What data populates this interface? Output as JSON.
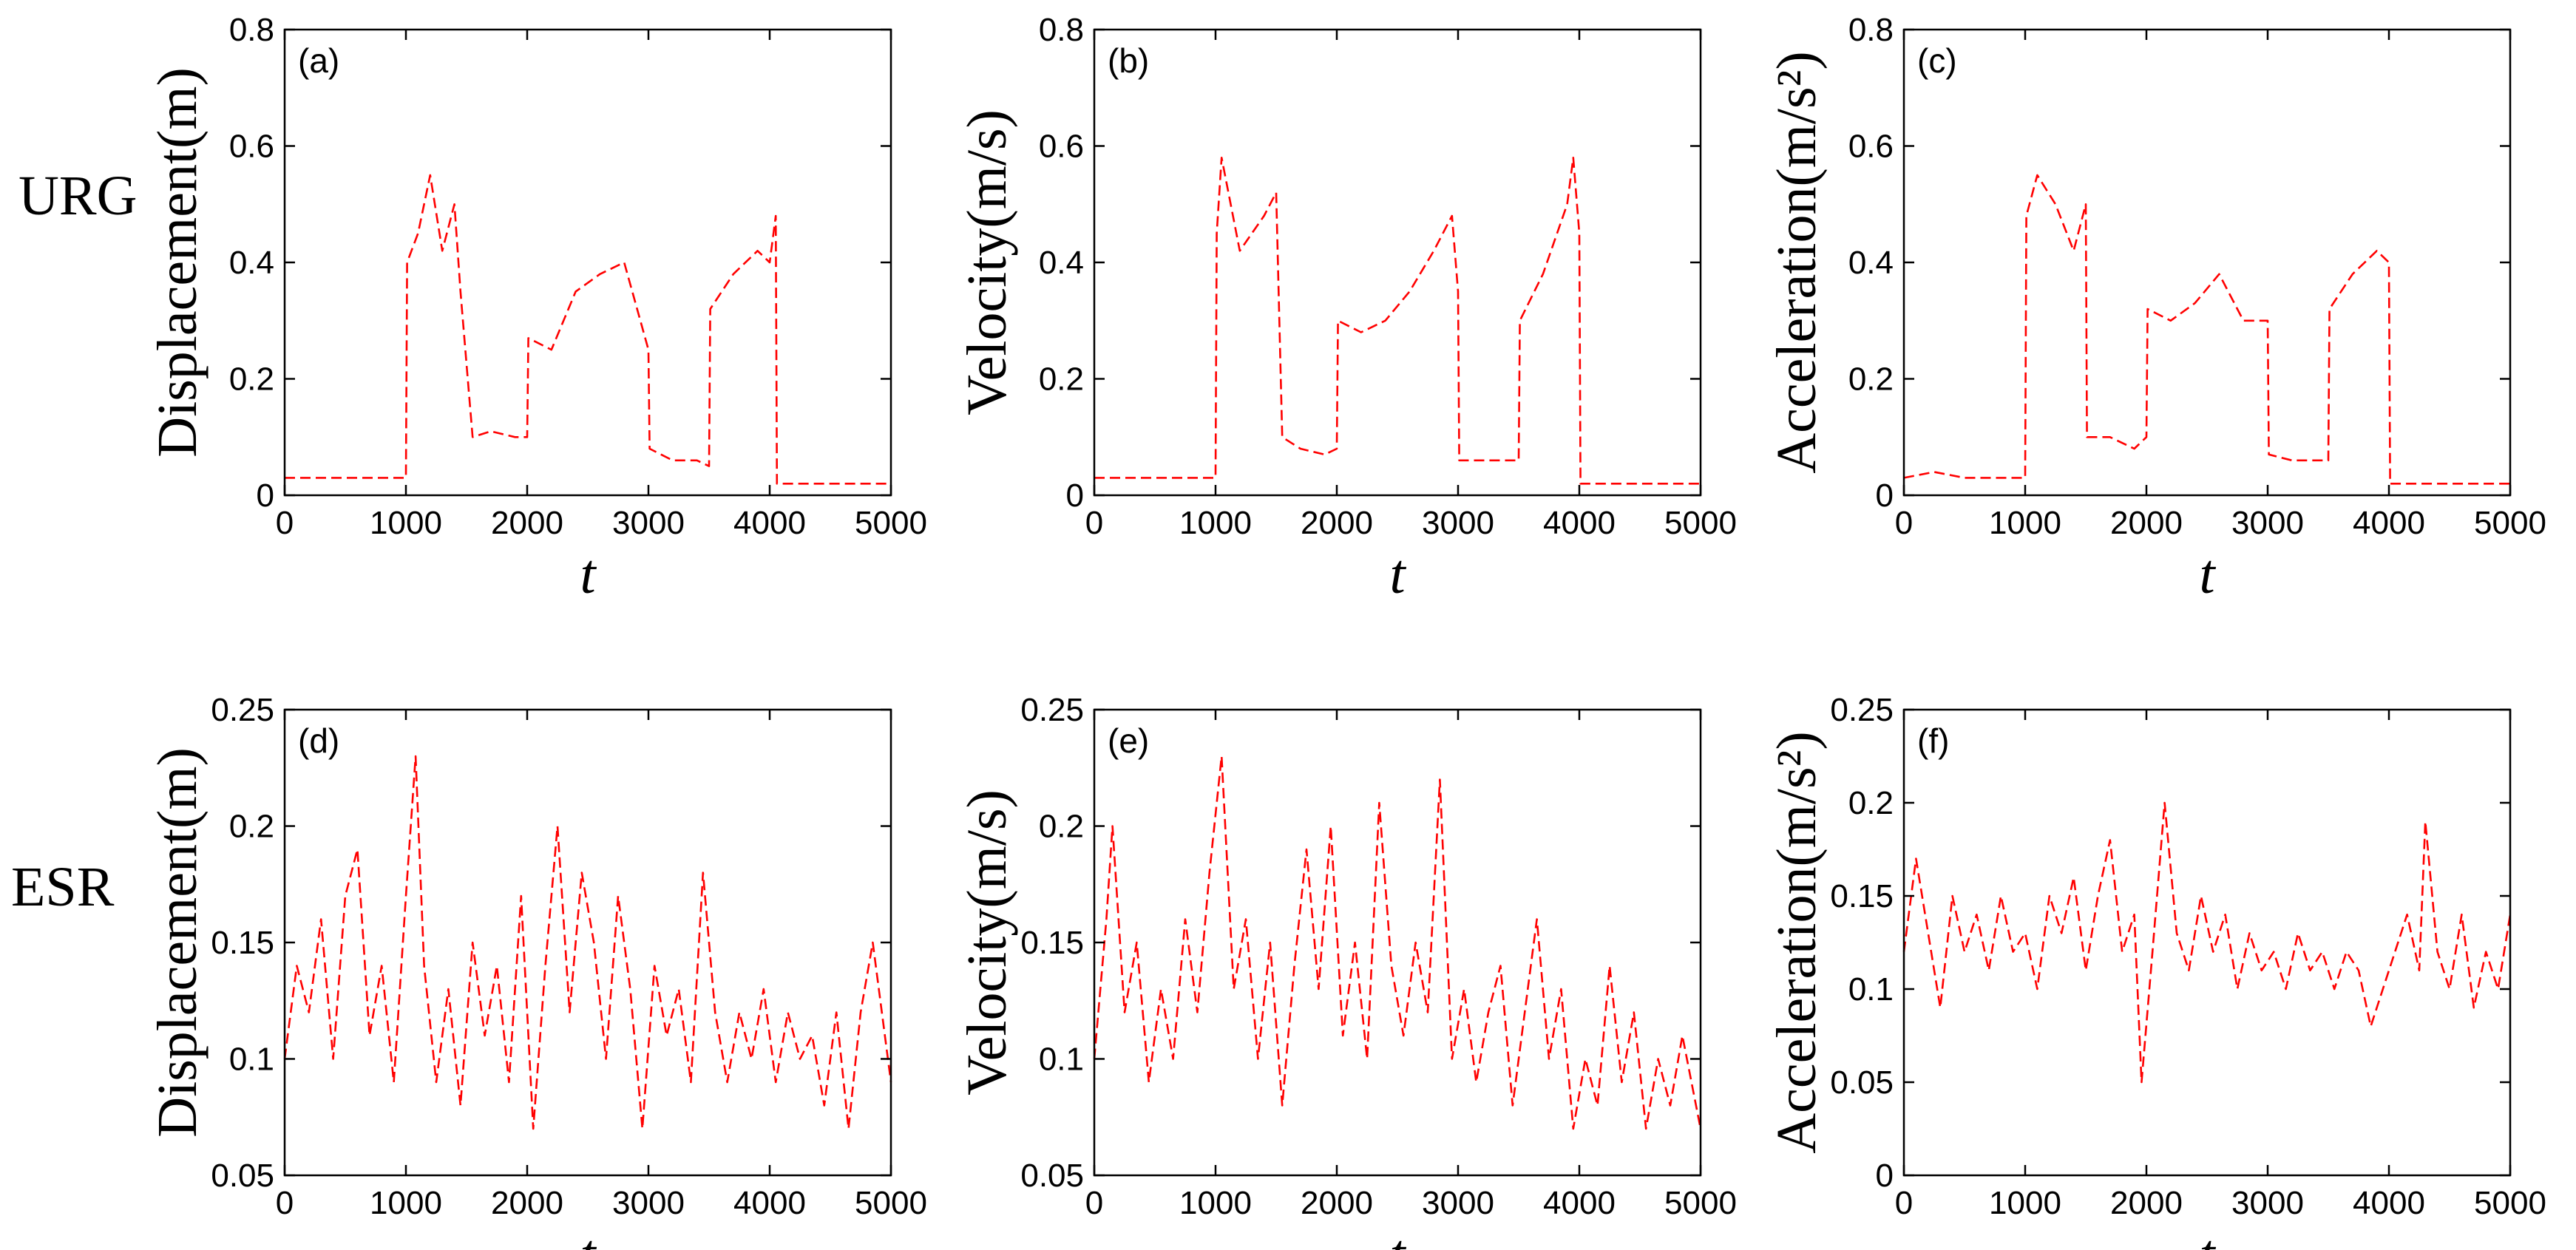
{
  "row_labels": [
    "URG",
    "ESR"
  ],
  "chart_data": [
    {
      "type": "line",
      "panel_label": "(a)",
      "ylabel": "Displacement(m)",
      "xlabel": "t",
      "xlim": [
        0,
        5000
      ],
      "ylim": [
        0,
        0.8
      ],
      "xticks": [
        0,
        1000,
        2000,
        3000,
        4000,
        5000
      ],
      "xtick_labels": [
        "0",
        "1000",
        "2000",
        "3000",
        "4000",
        "5000"
      ],
      "yticks": [
        0,
        0.2,
        0.4,
        0.6,
        0.8
      ],
      "ytick_labels": [
        "0",
        "0.2",
        "0.4",
        "0.6",
        "0.8"
      ],
      "grid": false,
      "line_style": "dashed",
      "color": "#ff0000",
      "series": [
        {
          "name": "",
          "x": [
            0,
            250,
            500,
            750,
            1000,
            1010,
            1100,
            1200,
            1300,
            1400,
            1450,
            1550,
            1700,
            1900,
            2000,
            2010,
            2200,
            2400,
            2600,
            2800,
            3000,
            3010,
            3200,
            3400,
            3500,
            3510,
            3700,
            3900,
            4000,
            4050,
            4060,
            4300,
            4600,
            5000
          ],
          "y": [
            0.03,
            0.03,
            0.03,
            0.03,
            0.03,
            0.4,
            0.45,
            0.55,
            0.42,
            0.5,
            0.35,
            0.1,
            0.11,
            0.1,
            0.1,
            0.27,
            0.25,
            0.35,
            0.38,
            0.4,
            0.25,
            0.08,
            0.06,
            0.06,
            0.05,
            0.32,
            0.38,
            0.42,
            0.4,
            0.48,
            0.02,
            0.02,
            0.02,
            0.02
          ]
        }
      ]
    },
    {
      "type": "line",
      "panel_label": "(b)",
      "ylabel": "Velocity(m/s)",
      "xlabel": "t",
      "xlim": [
        0,
        5000
      ],
      "ylim": [
        0,
        0.8
      ],
      "xticks": [
        0,
        1000,
        2000,
        3000,
        4000,
        5000
      ],
      "xtick_labels": [
        "0",
        "1000",
        "2000",
        "3000",
        "4000",
        "5000"
      ],
      "yticks": [
        0,
        0.2,
        0.4,
        0.6,
        0.8
      ],
      "ytick_labels": [
        "0",
        "0.2",
        "0.4",
        "0.6",
        "0.8"
      ],
      "grid": false,
      "line_style": "dashed",
      "color": "#ff0000",
      "series": [
        {
          "name": "",
          "x": [
            0,
            250,
            500,
            750,
            1000,
            1010,
            1050,
            1200,
            1400,
            1500,
            1550,
            1700,
            1900,
            2000,
            2010,
            2200,
            2400,
            2600,
            2800,
            2950,
            3000,
            3010,
            3200,
            3450,
            3500,
            3510,
            3700,
            3900,
            3950,
            4000,
            4010,
            4300,
            4600,
            5000
          ],
          "y": [
            0.03,
            0.03,
            0.03,
            0.03,
            0.03,
            0.45,
            0.58,
            0.42,
            0.48,
            0.52,
            0.1,
            0.08,
            0.07,
            0.08,
            0.3,
            0.28,
            0.3,
            0.35,
            0.42,
            0.48,
            0.35,
            0.06,
            0.06,
            0.06,
            0.06,
            0.3,
            0.38,
            0.5,
            0.58,
            0.45,
            0.02,
            0.02,
            0.02,
            0.02
          ]
        }
      ]
    },
    {
      "type": "line",
      "panel_label": "(c)",
      "ylabel": "Acceleration(m/s²)",
      "xlabel": "t",
      "xlim": [
        0,
        5000
      ],
      "ylim": [
        0,
        0.8
      ],
      "xticks": [
        0,
        1000,
        2000,
        3000,
        4000,
        5000
      ],
      "xtick_labels": [
        "0",
        "1000",
        "2000",
        "3000",
        "4000",
        "5000"
      ],
      "yticks": [
        0,
        0.2,
        0.4,
        0.6,
        0.8
      ],
      "ytick_labels": [
        "0",
        "0.2",
        "0.4",
        "0.6",
        "0.8"
      ],
      "grid": false,
      "line_style": "dashed",
      "color": "#ff0000",
      "series": [
        {
          "name": "",
          "x": [
            0,
            250,
            500,
            750,
            1000,
            1010,
            1100,
            1250,
            1400,
            1500,
            1510,
            1700,
            1900,
            2000,
            2010,
            2200,
            2400,
            2600,
            2800,
            3000,
            3010,
            3200,
            3450,
            3500,
            3510,
            3700,
            3900,
            4000,
            4010,
            4300,
            4600,
            5000
          ],
          "y": [
            0.03,
            0.04,
            0.03,
            0.03,
            0.03,
            0.48,
            0.55,
            0.5,
            0.42,
            0.5,
            0.1,
            0.1,
            0.08,
            0.1,
            0.32,
            0.3,
            0.33,
            0.38,
            0.3,
            0.3,
            0.07,
            0.06,
            0.06,
            0.06,
            0.32,
            0.38,
            0.42,
            0.4,
            0.02,
            0.02,
            0.02,
            0.02
          ]
        }
      ]
    },
    {
      "type": "line",
      "panel_label": "(d)",
      "ylabel": "Displacement(m)",
      "xlabel": "t",
      "xlim": [
        0,
        5000
      ],
      "ylim": [
        0.05,
        0.25
      ],
      "xticks": [
        0,
        1000,
        2000,
        3000,
        4000,
        5000
      ],
      "xtick_labels": [
        "0",
        "1000",
        "2000",
        "3000",
        "4000",
        "5000"
      ],
      "yticks": [
        0.05,
        0.1,
        0.15,
        0.2,
        0.25
      ],
      "ytick_labels": [
        "0.05",
        "0.1",
        "0.15",
        "0.2",
        "0.25"
      ],
      "grid": false,
      "line_style": "dashed",
      "color": "#ff0000",
      "series": [
        {
          "name": "",
          "x": [
            0,
            100,
            200,
            300,
            400,
            500,
            600,
            700,
            800,
            900,
            1000,
            1080,
            1150,
            1250,
            1350,
            1450,
            1550,
            1650,
            1750,
            1850,
            1950,
            2050,
            2150,
            2250,
            2350,
            2450,
            2550,
            2650,
            2750,
            2850,
            2950,
            3050,
            3150,
            3250,
            3350,
            3450,
            3550,
            3650,
            3750,
            3850,
            3950,
            4050,
            4150,
            4250,
            4350,
            4450,
            4550,
            4650,
            4750,
            4850,
            5000
          ],
          "y": [
            0.1,
            0.14,
            0.12,
            0.16,
            0.1,
            0.17,
            0.19,
            0.11,
            0.14,
            0.09,
            0.17,
            0.23,
            0.14,
            0.09,
            0.13,
            0.08,
            0.15,
            0.11,
            0.14,
            0.09,
            0.17,
            0.07,
            0.14,
            0.2,
            0.12,
            0.18,
            0.15,
            0.1,
            0.17,
            0.13,
            0.07,
            0.14,
            0.11,
            0.13,
            0.09,
            0.18,
            0.12,
            0.09,
            0.12,
            0.1,
            0.13,
            0.09,
            0.12,
            0.1,
            0.11,
            0.08,
            0.12,
            0.07,
            0.12,
            0.15,
            0.09
          ]
        }
      ]
    },
    {
      "type": "line",
      "panel_label": "(e)",
      "ylabel": "Velocity(m/s)",
      "xlabel": "t",
      "xlim": [
        0,
        5000
      ],
      "ylim": [
        0.05,
        0.25
      ],
      "xticks": [
        0,
        1000,
        2000,
        3000,
        4000,
        5000
      ],
      "xtick_labels": [
        "0",
        "1000",
        "2000",
        "3000",
        "4000",
        "5000"
      ],
      "yticks": [
        0.05,
        0.1,
        0.15,
        0.2,
        0.25
      ],
      "ytick_labels": [
        "0.05",
        "0.1",
        "0.15",
        "0.2",
        "0.25"
      ],
      "grid": false,
      "line_style": "dashed",
      "color": "#ff0000",
      "series": [
        {
          "name": "",
          "x": [
            0,
            100,
            150,
            250,
            350,
            450,
            550,
            650,
            750,
            850,
            950,
            1050,
            1150,
            1250,
            1350,
            1450,
            1550,
            1650,
            1750,
            1850,
            1950,
            2050,
            2150,
            2250,
            2350,
            2450,
            2550,
            2650,
            2750,
            2850,
            2950,
            3050,
            3150,
            3250,
            3350,
            3450,
            3550,
            3650,
            3750,
            3850,
            3950,
            4050,
            4150,
            4250,
            4350,
            4450,
            4550,
            4650,
            4750,
            4850,
            5000
          ],
          "y": [
            0.1,
            0.16,
            0.2,
            0.12,
            0.15,
            0.09,
            0.13,
            0.1,
            0.16,
            0.12,
            0.18,
            0.23,
            0.13,
            0.16,
            0.1,
            0.15,
            0.08,
            0.14,
            0.19,
            0.13,
            0.2,
            0.11,
            0.15,
            0.1,
            0.21,
            0.14,
            0.11,
            0.15,
            0.12,
            0.22,
            0.1,
            0.13,
            0.09,
            0.12,
            0.14,
            0.08,
            0.12,
            0.16,
            0.1,
            0.13,
            0.07,
            0.1,
            0.08,
            0.14,
            0.09,
            0.12,
            0.07,
            0.1,
            0.08,
            0.11,
            0.07
          ]
        }
      ]
    },
    {
      "type": "line",
      "panel_label": "(f)",
      "ylabel": "Acceleration(m/s²)",
      "xlabel": "t",
      "xlim": [
        0,
        5000
      ],
      "ylim": [
        0,
        0.25
      ],
      "xticks": [
        0,
        1000,
        2000,
        3000,
        4000,
        5000
      ],
      "xtick_labels": [
        "0",
        "1000",
        "2000",
        "3000",
        "4000",
        "5000"
      ],
      "yticks": [
        0,
        0.05,
        0.1,
        0.15,
        0.2,
        0.25
      ],
      "ytick_labels": [
        "0",
        "0.05",
        "0.1",
        "0.15",
        "0.2",
        "0.25"
      ],
      "grid": false,
      "line_style": "dashed",
      "color": "#ff0000",
      "series": [
        {
          "name": "",
          "x": [
            0,
            100,
            200,
            300,
            400,
            500,
            600,
            700,
            800,
            900,
            1000,
            1100,
            1200,
            1300,
            1400,
            1500,
            1600,
            1700,
            1800,
            1900,
            1960,
            2050,
            2150,
            2250,
            2350,
            2450,
            2550,
            2650,
            2750,
            2850,
            2950,
            3050,
            3150,
            3250,
            3350,
            3450,
            3550,
            3650,
            3750,
            3850,
            3950,
            4050,
            4150,
            4250,
            4300,
            4400,
            4500,
            4600,
            4700,
            4800,
            4900,
            5000
          ],
          "y": [
            0.12,
            0.17,
            0.13,
            0.09,
            0.15,
            0.12,
            0.14,
            0.11,
            0.15,
            0.12,
            0.13,
            0.1,
            0.15,
            0.13,
            0.16,
            0.11,
            0.15,
            0.18,
            0.12,
            0.14,
            0.05,
            0.12,
            0.2,
            0.13,
            0.11,
            0.15,
            0.12,
            0.14,
            0.1,
            0.13,
            0.11,
            0.12,
            0.1,
            0.13,
            0.11,
            0.12,
            0.1,
            0.12,
            0.11,
            0.08,
            0.1,
            0.12,
            0.14,
            0.11,
            0.19,
            0.12,
            0.1,
            0.14,
            0.09,
            0.12,
            0.1,
            0.14
          ]
        }
      ]
    }
  ]
}
